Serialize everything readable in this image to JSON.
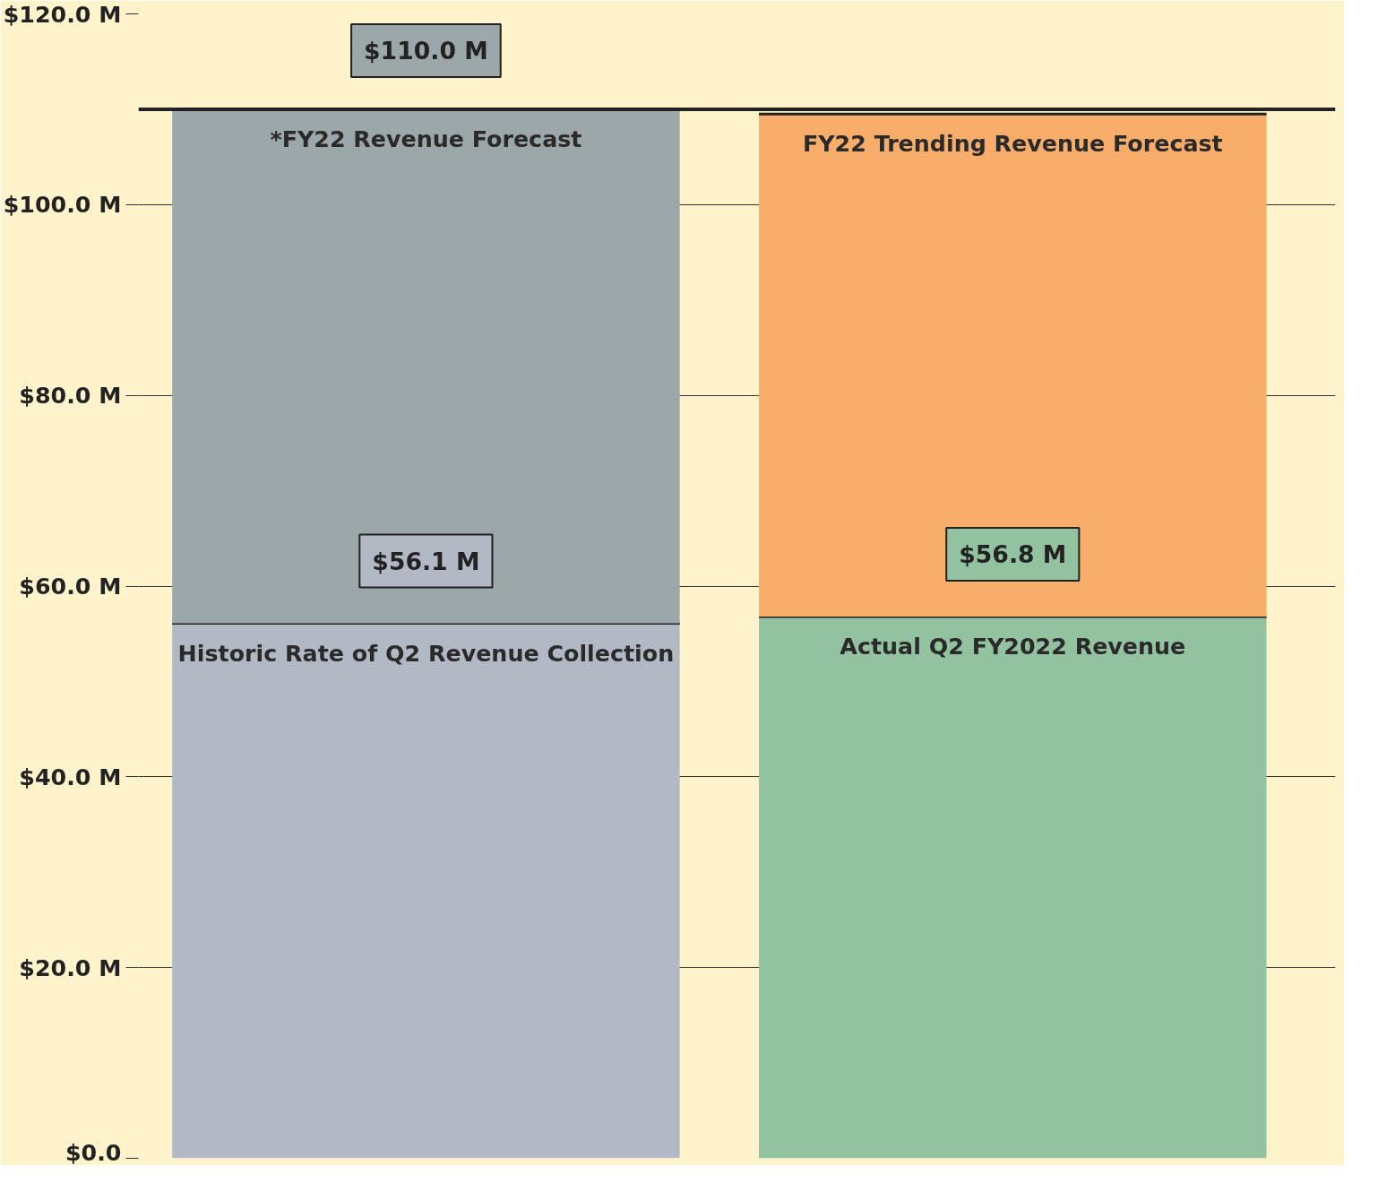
{
  "chart_data": {
    "type": "bar",
    "stacked": true,
    "categories": [
      null,
      null
    ],
    "series": [
      {
        "name": "Historic Rate of Q2 Revenue Collection",
        "color": "#b3b9c4",
        "values": [
          56.1,
          null
        ],
        "value_labels": [
          "$56.1 M",
          null
        ]
      },
      {
        "name": "Actual Q2 FY2022 Revenue",
        "color": "#93c2a0",
        "values": [
          null,
          56.8
        ],
        "value_labels": [
          null,
          "$56.8 M"
        ]
      },
      {
        "name": "*FY22 Revenue Forecast",
        "color": "#9ba7a8",
        "values": [
          53.9,
          null
        ]
      },
      {
        "name": "FY22 Trending Revenue Forecast",
        "color": "#f8ae6a",
        "values": [
          null,
          52.7
        ]
      }
    ],
    "totals": [
      "$110.0 M",
      null
    ],
    "ref_lines": [
      {
        "axis": "y",
        "value": 110,
        "color": "#222222"
      }
    ],
    "ylim": [
      0,
      120
    ],
    "yticks": [
      {
        "value": 0,
        "label": "$0.0"
      },
      {
        "value": 20,
        "label": "$20.0 M"
      },
      {
        "value": 40,
        "label": "$40.0 M"
      },
      {
        "value": 60,
        "label": "$60.0 M"
      },
      {
        "value": 80,
        "label": "$80.0 M"
      },
      {
        "value": 100,
        "label": "$100.0 M"
      },
      {
        "value": 120,
        "label": "$120.0 M"
      }
    ],
    "grid": "y"
  }
}
